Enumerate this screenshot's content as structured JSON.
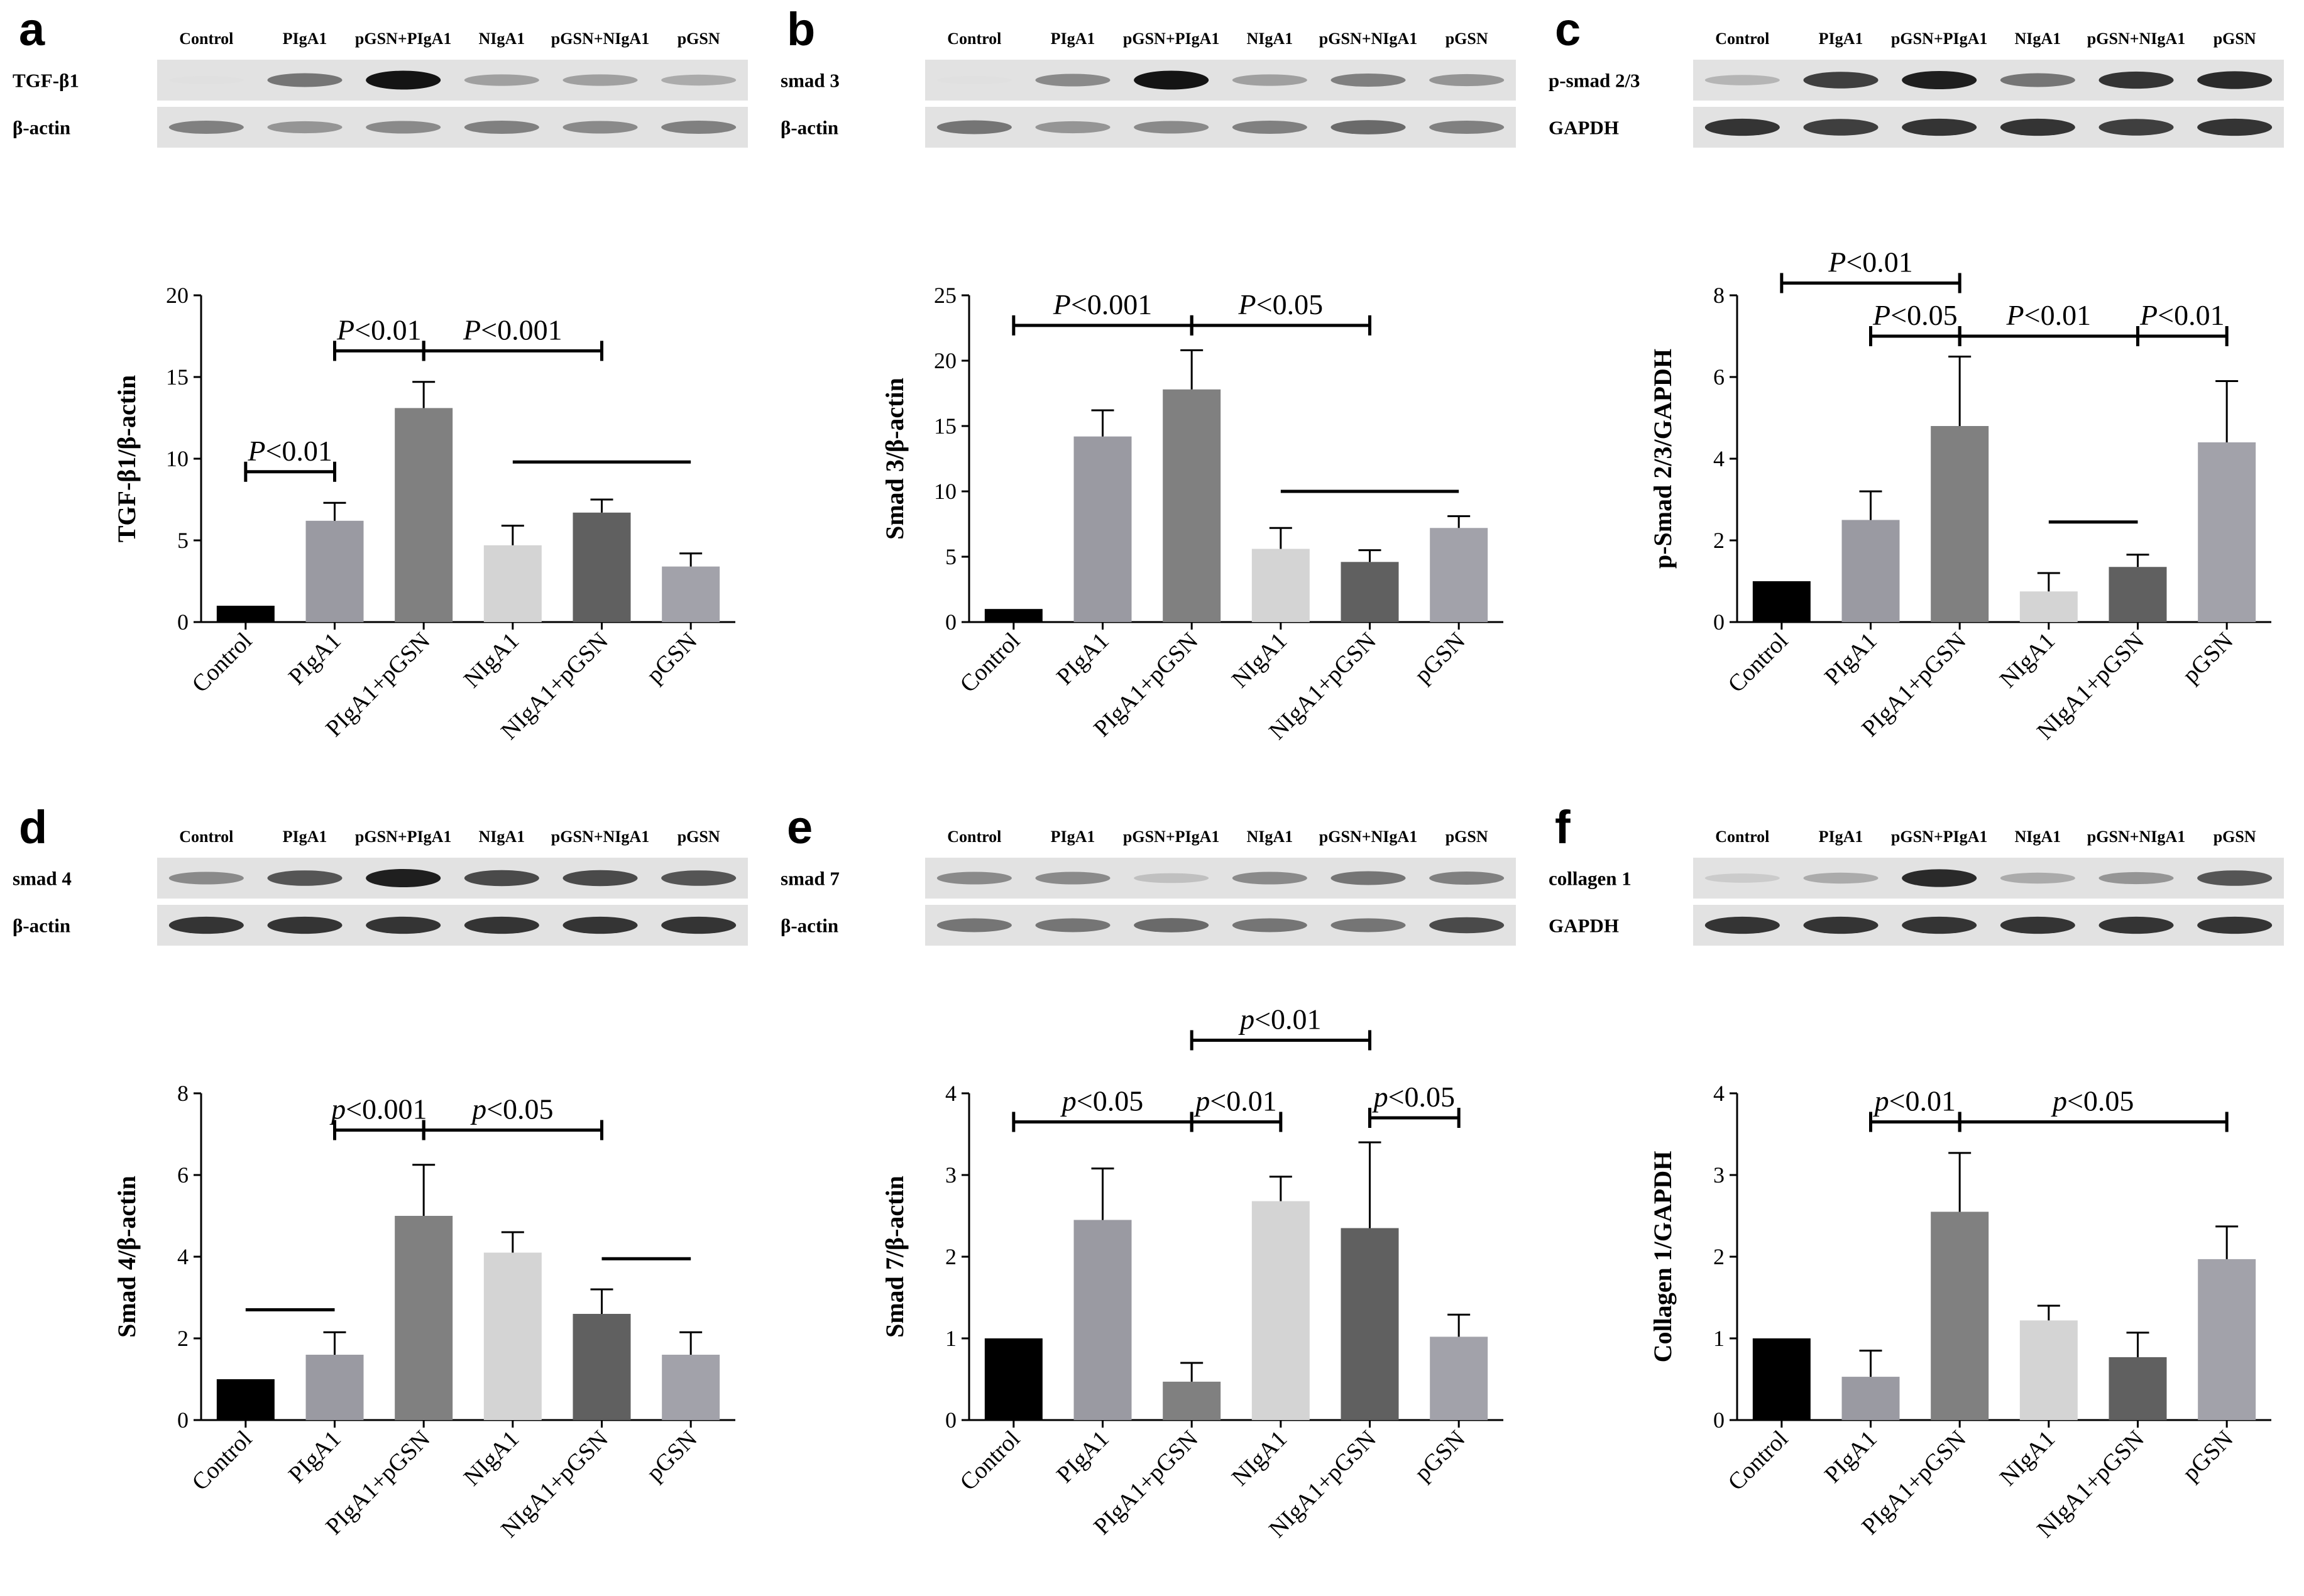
{
  "chart_data": [
    {
      "type": "bar",
      "panel": "a",
      "blot": {
        "lanes": [
          "Control",
          "PIgA1",
          "pGSN+PIgA1",
          "NIgA1",
          "pGSN+NIgA1",
          "pGSN"
        ],
        "rows": [
          {
            "name": "TGF-β1",
            "intensity": [
              0.05,
              0.55,
              1.0,
              0.35,
              0.35,
              0.3
            ]
          },
          {
            "name": "β-actin",
            "intensity": [
              0.5,
              0.4,
              0.45,
              0.5,
              0.45,
              0.5
            ]
          }
        ]
      },
      "ylabel": "TGF-β1/β-actin",
      "ylim": [
        0,
        20
      ],
      "yticks": [
        "0",
        "5",
        "10",
        "15",
        "20"
      ],
      "categories": [
        "Control",
        "PIgA1",
        "PIgA1+pGSN",
        "NIgA1",
        "NIgA1+pGSN",
        "pGSN"
      ],
      "values": [
        1.0,
        6.2,
        13.1,
        4.7,
        6.7,
        3.4
      ],
      "errors": [
        0.0,
        1.1,
        1.6,
        1.2,
        0.8,
        0.8
      ],
      "colors": [
        "#000000",
        "#9a9aa2",
        "#808080",
        "#d4d4d4",
        "#606060",
        "#a2a2aa"
      ],
      "annotations": [
        {
          "type": "bracket",
          "text": "P<0.01",
          "from": 0,
          "to": 1,
          "y": 9.2
        },
        {
          "type": "bracket",
          "text": "P<0.01",
          "from": 1,
          "to": 2,
          "y": 16.6
        },
        {
          "type": "bracket",
          "text": "P<0.001",
          "from": 2,
          "to": 4,
          "y": 16.6
        },
        {
          "type": "line",
          "text": "",
          "from": 3,
          "to": 5,
          "y": 9.8
        }
      ]
    },
    {
      "type": "bar",
      "panel": "b",
      "blot": {
        "lanes": [
          "Control",
          "PIgA1",
          "pGSN+PIgA1",
          "NIgA1",
          "pGSN+NIgA1",
          "pGSN"
        ],
        "rows": [
          {
            "name": "smad 3",
            "intensity": [
              0.05,
              0.45,
              1.0,
              0.35,
              0.5,
              0.4
            ]
          },
          {
            "name": "β-actin",
            "intensity": [
              0.55,
              0.4,
              0.45,
              0.5,
              0.6,
              0.5
            ]
          }
        ]
      },
      "ylabel": "Smad 3/β-actin",
      "ylim": [
        0,
        25
      ],
      "yticks": [
        "0",
        "5",
        "10",
        "15",
        "20",
        "25"
      ],
      "categories": [
        "Control",
        "PIgA1",
        "PIgA1+pGSN",
        "NIgA1",
        "NIgA1+pGSN",
        "pGSN"
      ],
      "values": [
        1.0,
        14.2,
        17.8,
        5.6,
        4.6,
        7.2
      ],
      "errors": [
        0.0,
        2.0,
        3.0,
        1.6,
        0.9,
        0.9
      ],
      "colors": [
        "#000000",
        "#9a9aa2",
        "#808080",
        "#d4d4d4",
        "#606060",
        "#a2a2aa"
      ],
      "annotations": [
        {
          "type": "bracket",
          "text": "P<0.001",
          "from": 0,
          "to": 2,
          "y": 22.7
        },
        {
          "type": "bracket",
          "text": "P<0.05",
          "from": 2,
          "to": 4,
          "y": 22.7
        },
        {
          "type": "line",
          "text": "",
          "from": 3,
          "to": 5,
          "y": 10.0
        }
      ]
    },
    {
      "type": "bar",
      "panel": "c",
      "blot": {
        "lanes": [
          "Control",
          "PIgA1",
          "pGSN+PIgA1",
          "NIgA1",
          "pGSN+NIgA1",
          "pGSN"
        ],
        "rows": [
          {
            "name": "p-smad 2/3",
            "intensity": [
              0.25,
              0.8,
              0.95,
              0.55,
              0.85,
              0.9
            ]
          },
          {
            "name": "GAPDH",
            "intensity": [
              0.85,
              0.8,
              0.85,
              0.85,
              0.8,
              0.85
            ]
          }
        ]
      },
      "ylabel": "p-Smad 2/3/GAPDH",
      "ylim": [
        0,
        8
      ],
      "yticks": [
        "0",
        "2",
        "4",
        "6",
        "8"
      ],
      "categories": [
        "Control",
        "PIgA1",
        "PIgA1+pGSN",
        "NIgA1",
        "NIgA1+pGSN",
        "pGSN"
      ],
      "values": [
        1.0,
        2.5,
        4.8,
        0.75,
        1.35,
        4.4
      ],
      "errors": [
        0.0,
        0.7,
        1.7,
        0.45,
        0.3,
        1.5
      ],
      "colors": [
        "#000000",
        "#9a9aa2",
        "#808080",
        "#d4d4d4",
        "#606060",
        "#a2a2aa"
      ],
      "annotations": [
        {
          "type": "bracket",
          "text": "P<0.01",
          "from": 0,
          "to": 2,
          "y": 8.3
        },
        {
          "type": "bracket",
          "text": "P<0.05",
          "from": 1,
          "to": 2,
          "y": 7.0
        },
        {
          "type": "bracket",
          "text": "P<0.01",
          "from": 2,
          "to": 4,
          "y": 7.0
        },
        {
          "type": "bracket",
          "text": "P<0.01",
          "from": 4,
          "to": 5,
          "y": 7.0
        },
        {
          "type": "line",
          "text": "",
          "from": 3,
          "to": 4,
          "y": 2.45
        }
      ]
    },
    {
      "type": "bar",
      "panel": "d",
      "blot": {
        "lanes": [
          "Control",
          "PIgA1",
          "pGSN+PIgA1",
          "NIgA1",
          "pGSN+NIgA1",
          "pGSN"
        ],
        "rows": [
          {
            "name": "smad 4",
            "intensity": [
              0.45,
              0.7,
              0.95,
              0.75,
              0.75,
              0.7
            ]
          },
          {
            "name": "β-actin",
            "intensity": [
              0.85,
              0.85,
              0.85,
              0.85,
              0.85,
              0.85
            ]
          }
        ]
      },
      "ylabel": "Smad 4/β-actin",
      "ylim": [
        0,
        8
      ],
      "yticks": [
        "0",
        "2",
        "4",
        "6",
        "8"
      ],
      "categories": [
        "Control",
        "PIgA1",
        "PIgA1+pGSN",
        "NIgA1",
        "NIgA1+pGSN",
        "pGSN"
      ],
      "values": [
        1.0,
        1.6,
        5.0,
        4.1,
        2.6,
        1.6
      ],
      "errors": [
        0.0,
        0.55,
        1.25,
        0.5,
        0.6,
        0.55
      ],
      "colors": [
        "#000000",
        "#9a9aa2",
        "#808080",
        "#d4d4d4",
        "#606060",
        "#a2a2aa"
      ],
      "annotations": [
        {
          "type": "bracket",
          "text": "p<0.001",
          "from": 1,
          "to": 2,
          "y": 7.1
        },
        {
          "type": "bracket",
          "text": "p<0.05",
          "from": 2,
          "to": 4,
          "y": 7.1
        },
        {
          "type": "line",
          "text": "",
          "from": 0,
          "to": 1,
          "y": 2.7
        },
        {
          "type": "line",
          "text": "",
          "from": 4,
          "to": 5,
          "y": 3.95
        }
      ]
    },
    {
      "type": "bar",
      "panel": "e",
      "blot": {
        "lanes": [
          "Control",
          "PIgA1",
          "pGSN+PIgA1",
          "NIgA1",
          "pGSN+NIgA1",
          "pGSN"
        ],
        "rows": [
          {
            "name": "smad 7",
            "intensity": [
              0.45,
              0.45,
              0.2,
              0.45,
              0.55,
              0.5
            ]
          },
          {
            "name": "β-actin",
            "intensity": [
              0.55,
              0.55,
              0.6,
              0.55,
              0.55,
              0.75
            ]
          }
        ]
      },
      "ylabel": "Smad 7/β-actin",
      "ylim": [
        0,
        4
      ],
      "yticks": [
        "0",
        "1",
        "2",
        "3",
        "4"
      ],
      "categories": [
        "Control",
        "PIgA1",
        "PIgA1+pGSN",
        "NIgA1",
        "NIgA1+pGSN",
        "pGSN"
      ],
      "values": [
        1.0,
        2.45,
        0.47,
        2.68,
        2.35,
        1.02
      ],
      "errors": [
        0.0,
        0.63,
        0.23,
        0.3,
        1.05,
        0.27
      ],
      "colors": [
        "#000000",
        "#9a9aa2",
        "#808080",
        "#d4d4d4",
        "#606060",
        "#a2a2aa"
      ],
      "annotations": [
        {
          "type": "bracket",
          "text": "p<0.05",
          "from": 0,
          "to": 2,
          "y": 3.65
        },
        {
          "type": "bracket",
          "text": "p<0.01",
          "from": 2,
          "to": 3,
          "y": 3.65
        },
        {
          "type": "bracket",
          "text": "p<0.01",
          "from": 2,
          "to": 4,
          "y": 4.65
        },
        {
          "type": "bracket",
          "text": "p<0.05",
          "from": 4,
          "to": 5,
          "y": 3.7
        }
      ]
    },
    {
      "type": "bar",
      "panel": "f",
      "blot": {
        "lanes": [
          "Control",
          "PIgA1",
          "pGSN+PIgA1",
          "NIgA1",
          "pGSN+NIgA1",
          "pGSN"
        ],
        "rows": [
          {
            "name": "collagen 1",
            "intensity": [
              0.15,
              0.3,
              0.9,
              0.3,
              0.4,
              0.7
            ]
          },
          {
            "name": "GAPDH",
            "intensity": [
              0.85,
              0.85,
              0.85,
              0.85,
              0.85,
              0.85
            ]
          }
        ]
      },
      "ylabel": "Collagen 1/GAPDH",
      "ylim": [
        0,
        4
      ],
      "yticks": [
        "0",
        "1",
        "2",
        "3",
        "4"
      ],
      "categories": [
        "Control",
        "PIgA1",
        "PIgA1+pGSN",
        "NIgA1",
        "NIgA1+pGSN",
        "pGSN"
      ],
      "values": [
        1.0,
        0.53,
        2.55,
        1.22,
        0.77,
        1.97
      ],
      "errors": [
        0.0,
        0.32,
        0.72,
        0.18,
        0.3,
        0.4
      ],
      "colors": [
        "#000000",
        "#9a9aa2",
        "#808080",
        "#d4d4d4",
        "#606060",
        "#a2a2aa"
      ],
      "annotations": [
        {
          "type": "bracket",
          "text": "p<0.01",
          "from": 1,
          "to": 2,
          "y": 3.65
        },
        {
          "type": "bracket",
          "text": "p<0.05",
          "from": 2,
          "to": 5,
          "y": 3.65
        }
      ]
    }
  ]
}
